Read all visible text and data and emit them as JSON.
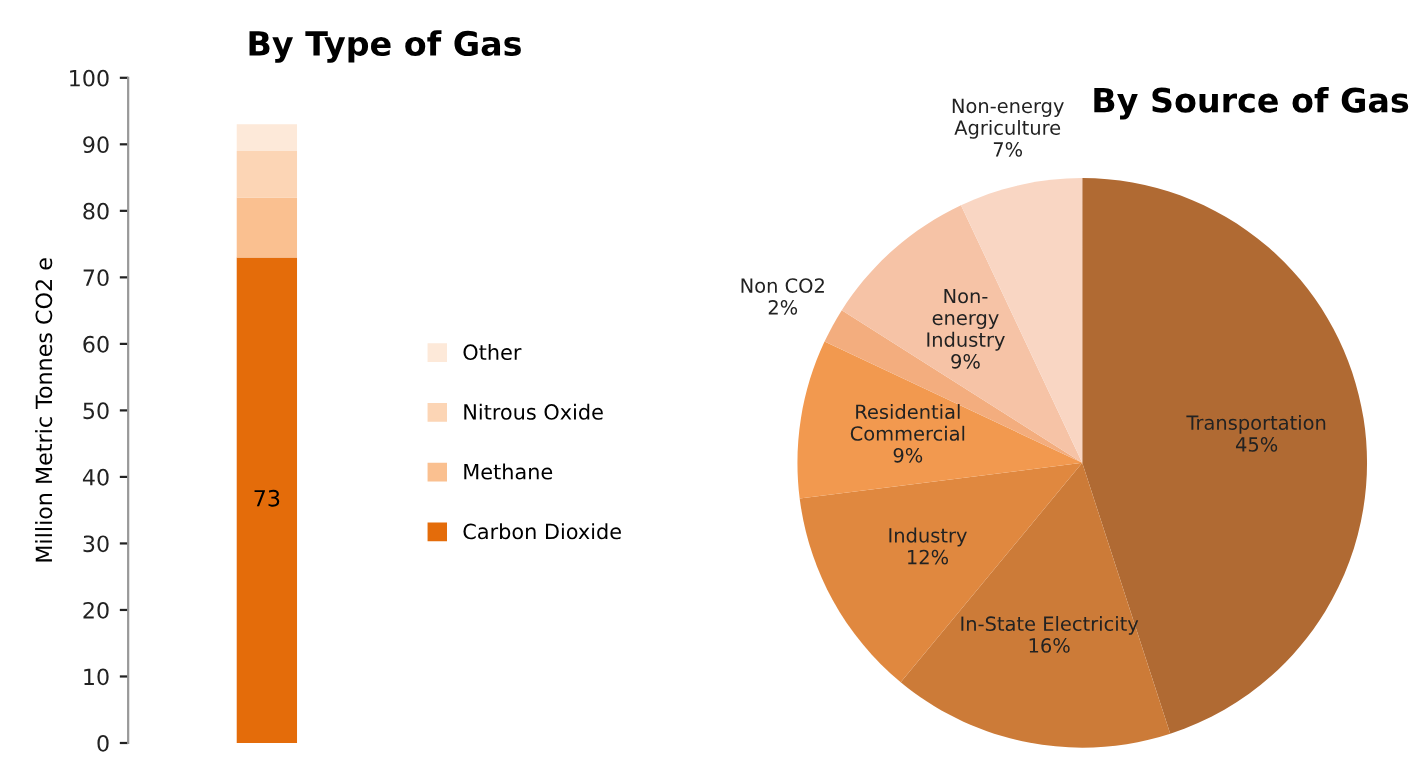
{
  "chart_data": [
    {
      "type": "bar",
      "title": "By Type of Gas",
      "ylabel": "Million Metric Tonnes CO2 e",
      "categories": [
        null
      ],
      "stacked": true,
      "ylim": [
        0,
        100
      ],
      "yticks": [
        0,
        10,
        20,
        30,
        40,
        50,
        60,
        70,
        80,
        90,
        100
      ],
      "grid": false,
      "legend": "right",
      "tick_labels": "y",
      "series": [
        {
          "name": "Carbon Dioxide",
          "color": "#e46c0a",
          "values": [
            73
          ],
          "value_labels": [
            "73"
          ]
        },
        {
          "name": "Methane",
          "color": "#fac090",
          "values": [
            9
          ]
        },
        {
          "name": "Nitrous Oxide",
          "color": "#fcd5b5",
          "values": [
            7
          ]
        },
        {
          "name": "Other",
          "color": "#fde9d9",
          "values": [
            4
          ]
        }
      ]
    },
    {
      "type": "pie",
      "title": "By Source of Gas",
      "categories": [
        "Transportation",
        "In-State Electricity",
        "Industry",
        "Residential\nCommercial",
        "Non CO2",
        "Non-\nenergy\nIndustry",
        "Non-energy\nAgriculture"
      ],
      "values": [
        45,
        16,
        12,
        9,
        2,
        9,
        7
      ],
      "value_labels": [
        "45%",
        "16%",
        "12%",
        "9%",
        "2%",
        "9%",
        "7%"
      ],
      "colors": [
        "#b06a33",
        "#cc7b38",
        "#e0883f",
        "#f2994f",
        "#f3ad7e",
        "#f6c3a6",
        "#f9d6c3"
      ]
    }
  ]
}
